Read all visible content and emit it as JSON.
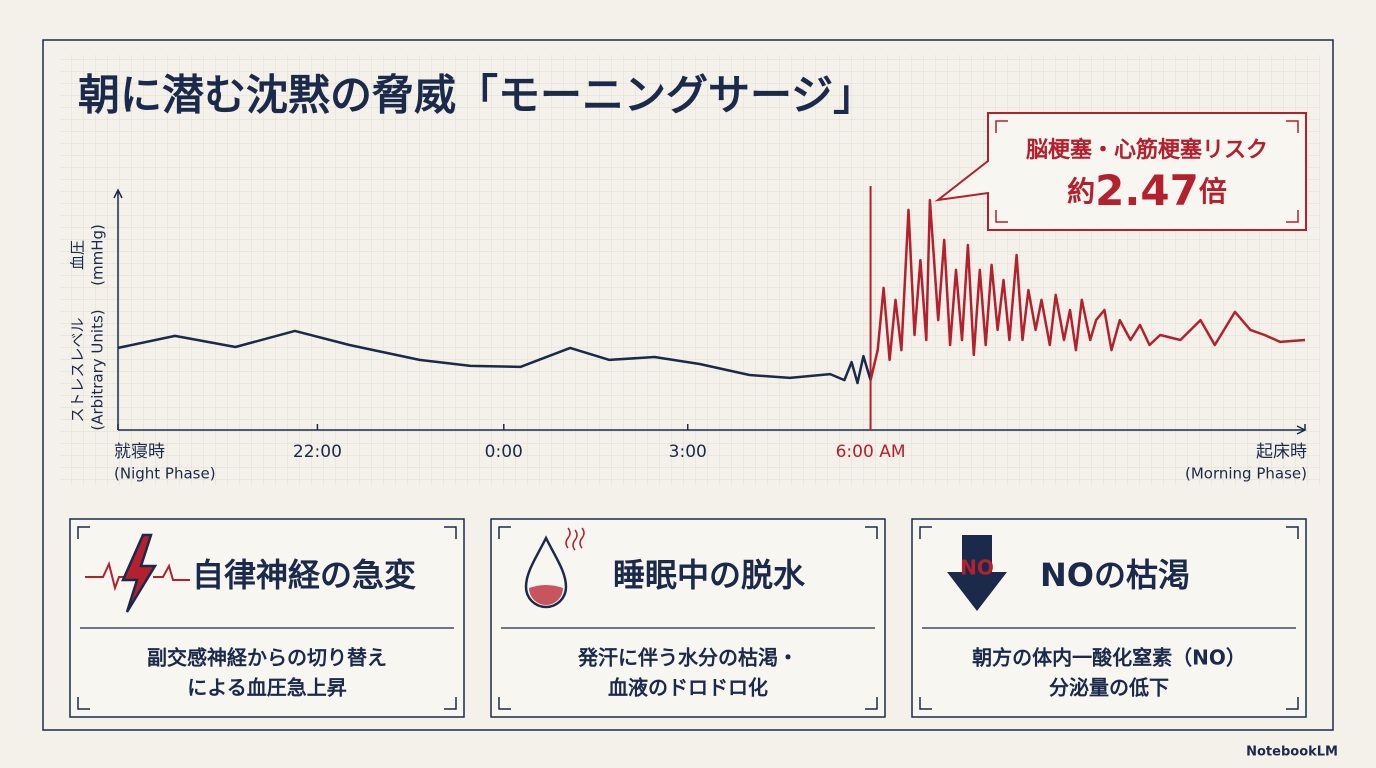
{
  "title": "朝に潜む沈黙の脅威「モーニングサージ」",
  "chart_data": {
    "type": "line",
    "ylabel": [
      {
        "main": "血圧",
        "unit": "(mmHg)"
      },
      {
        "main": "ストレスレベル",
        "unit": "(Arbitrary Units)"
      }
    ],
    "xlim": [
      0,
      100
    ],
    "ylim": [
      0,
      100
    ],
    "xticks": [
      {
        "value": 0,
        "label": "就寝時",
        "sublabel": "(Night Phase)"
      },
      {
        "value": 16.8,
        "label": "22:00"
      },
      {
        "value": 32.5,
        "label": "0:00"
      },
      {
        "value": 48.0,
        "label": "3:00"
      },
      {
        "value": 63.4,
        "label": "6:00 AM",
        "color": "#b3202e"
      },
      {
        "value": 100,
        "label": "起床時",
        "sublabel": "(Morning Phase)"
      }
    ],
    "series": [
      {
        "color": "#1b2a4a",
        "x": [
          0,
          4.8,
          9.9,
          14.9,
          19.5,
          25.4,
          29.7,
          33.9,
          38.1,
          41.4,
          45.2,
          49.0,
          53.2,
          56.6,
          60.0,
          61.2,
          61.8,
          62.3,
          62.8,
          63.4
        ],
        "values": [
          34.2,
          39.2,
          34.6,
          41.3,
          35.4,
          29.2,
          26.7,
          26.3,
          34.2,
          29.2,
          30.4,
          27.5,
          22.9,
          21.7,
          23.3,
          20.8,
          28.3,
          19.6,
          30.8,
          20.8
        ]
      },
      {
        "color": "#b3202e",
        "x": [
          63.4,
          64.0,
          64.5,
          65.0,
          65.5,
          66.0,
          66.6,
          67.1,
          67.6,
          68.1,
          68.4,
          69.1,
          69.6,
          70.1,
          70.6,
          71.1,
          71.6,
          72.1,
          72.6,
          73.1,
          73.6,
          74.1,
          74.6,
          75.1,
          75.7,
          76.2,
          76.7,
          77.3,
          77.8,
          78.5,
          79.0,
          79.7,
          80.2,
          80.7,
          81.2,
          81.9,
          82.4,
          83.1,
          83.7,
          84.4,
          85.3,
          86.1,
          86.9,
          87.8,
          89.5,
          91.2,
          92.4,
          94.1,
          95.4,
          96.6,
          97.9,
          100
        ],
        "values": [
          20.8,
          33.3,
          59.2,
          29.2,
          54.2,
          33.3,
          91.7,
          39.6,
          70.8,
          37.5,
          95.8,
          45.8,
          79.2,
          35.4,
          66.7,
          37.5,
          77.1,
          31.3,
          66.7,
          35.4,
          68.8,
          41.7,
          62.5,
          37.5,
          72.9,
          37.5,
          58.3,
          41.7,
          54.2,
          35.4,
          56.3,
          37.5,
          50.0,
          33.3,
          54.2,
          37.5,
          45.8,
          50.0,
          33.3,
          45.8,
          37.5,
          43.8,
          35.4,
          39.6,
          37.5,
          45.8,
          35.4,
          49.2,
          41.7,
          39.6,
          36.7,
          37.5
        ]
      }
    ],
    "annotation": {
      "title": "脳梗塞・心筋梗塞リスク",
      "prefix": "約",
      "value": 2.47,
      "suffix": "倍"
    }
  },
  "cards": [
    {
      "title": "自律神経の急変",
      "lines": [
        "副交感神経からの切り替え",
        "による血圧急上昇"
      ]
    },
    {
      "title": "睡眠中の脱水",
      "lines": [
        "発汗に伴う水分の枯渇・",
        "血液のドロドロ化"
      ]
    },
    {
      "title": "NOの枯渇",
      "icon_text": "NO",
      "lines": [
        "朝方の体内一酸化窒素（NO）",
        "分泌量の低下"
      ]
    }
  ],
  "footer": "NotebookLM"
}
